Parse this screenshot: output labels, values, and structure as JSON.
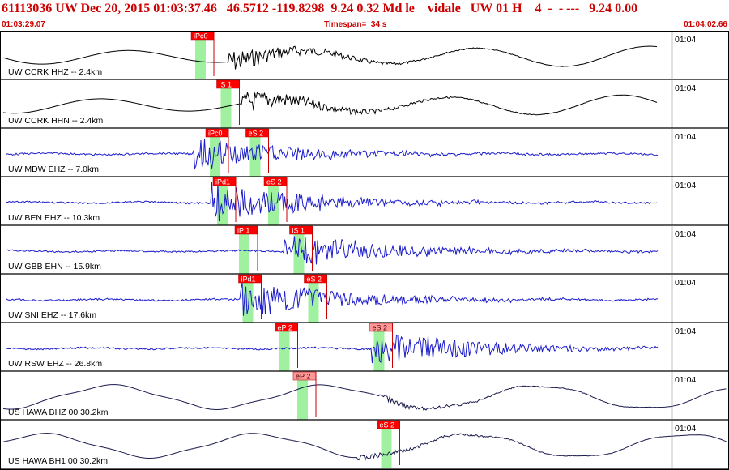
{
  "header": {
    "title": "61113036 UW Dec 20, 2015 01:03:37.46   46.5712 -119.8298  9.24 0.32 Md le    vidale   UW 01 H    4  -  - ---   9.24 0.00",
    "start_time": "01:03:29.07",
    "timespan": "Timespan=  34 s",
    "end_time": "01:04:02.66"
  },
  "colors": {
    "accent": "#cc0000",
    "pick_fill": "#ff0000",
    "pick_fill_emergent": "#ff9999",
    "pick_window": "#9ff09f",
    "trace_broadband": "#000000",
    "trace_short_period": "#1c1ccc",
    "border": "#000000"
  },
  "chart_data": {
    "type": "line",
    "title": "61113036 UW Dec 20, 2015 01:03:37.46   46.5712 -119.8298  9.24 0.32 Md le    vidale   UW 01 H    4  -  - ---   9.24 0.00",
    "xlabel": "",
    "ylabel": "",
    "x_range": [
      "01:03:29.07",
      "01:04:02.66"
    ],
    "timespan_s": 34,
    "grid": false,
    "series": [
      {
        "name": "UW CCRK HHZ -- 2.4km",
        "color": "#000000",
        "style": "broadband",
        "time_label": "01:04",
        "onset": 0.31,
        "amp": 0.42,
        "picks": [
          {
            "label": "iPc0",
            "t": 0.27,
            "emergent": false
          }
        ]
      },
      {
        "name": "UW CCRK HHN -- 2.4km",
        "color": "#000000",
        "style": "broadband",
        "time_label": "01:04",
        "onset": 0.33,
        "amp": 0.4,
        "picks": [
          {
            "label": "iS 1",
            "t": 0.305,
            "emergent": false
          }
        ]
      },
      {
        "name": "UW MDW EHZ -- 7.0km",
        "color": "#1c1ccc",
        "style": "short",
        "time_label": "01:04",
        "onset": 0.305,
        "amp": 0.7,
        "picks": [
          {
            "label": "iPc0",
            "t": 0.29,
            "emergent": false
          },
          {
            "label": "eS 2",
            "t": 0.345,
            "emergent": false
          }
        ]
      },
      {
        "name": "UW BEN EHZ -- 10.3km",
        "color": "#1c1ccc",
        "style": "short",
        "time_label": "01:04",
        "onset": 0.33,
        "amp": 0.85,
        "picks": [
          {
            "label": "iPd1",
            "t": 0.3,
            "emergent": false
          },
          {
            "label": "eS 2",
            "t": 0.37,
            "emergent": false
          }
        ]
      },
      {
        "name": "UW GBB EHN -- 15.9km",
        "color": "#1c1ccc",
        "style": "short",
        "time_label": "01:04",
        "onset": 0.43,
        "amp": 0.8,
        "picks": [
          {
            "label": "iP 1",
            "t": 0.33,
            "emergent": false
          },
          {
            "label": "iS 1",
            "t": 0.405,
            "emergent": false
          }
        ]
      },
      {
        "name": "UW SNI EHZ -- 17.6km",
        "color": "#1c1ccc",
        "style": "short",
        "time_label": "01:04",
        "onset": 0.37,
        "amp": 0.85,
        "picks": [
          {
            "label": "iPd1",
            "t": 0.335,
            "emergent": false
          },
          {
            "label": "eS 2",
            "t": 0.425,
            "emergent": false
          }
        ]
      },
      {
        "name": "UW RSW EHZ -- 26.8km",
        "color": "#1c1ccc",
        "style": "short",
        "time_label": "01:04",
        "onset": 0.55,
        "amp": 0.8,
        "picks": [
          {
            "label": "eP 2",
            "t": 0.385,
            "emergent": false
          },
          {
            "label": "eS 2",
            "t": 0.515,
            "emergent": true
          }
        ]
      },
      {
        "name": "US HAWA BHZ 00 30.2km",
        "color": "#1a1a4d",
        "style": "longperiod",
        "time_label": "01:04",
        "onset": 0.6,
        "amp": 0.3,
        "picks": [
          {
            "label": "eP 2",
            "t": 0.41,
            "emergent": true
          }
        ]
      },
      {
        "name": "US HAWA BH1 00 30.2km",
        "color": "#1a1a4d",
        "style": "longperiod",
        "time_label": "01:04",
        "onset": 0.57,
        "amp": 0.4,
        "picks": [
          {
            "label": "eS 2",
            "t": 0.525,
            "emergent": false
          }
        ]
      }
    ]
  }
}
